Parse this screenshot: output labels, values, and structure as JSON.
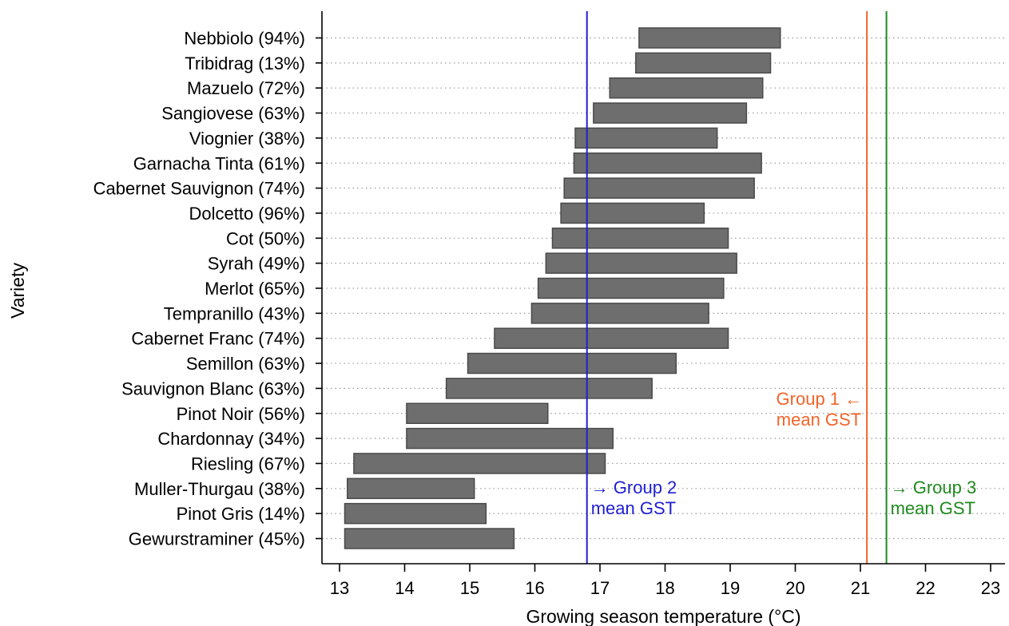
{
  "chart_data": {
    "type": "range_bar",
    "xlabel": "Growing season temperature (°C)",
    "ylabel": "Variety",
    "xlim": [
      12.7,
      23.1
    ],
    "xticks": [
      13,
      14,
      15,
      16,
      17,
      18,
      19,
      20,
      21,
      22,
      23
    ],
    "grid": "horizontal dotted",
    "bar_color": "#6e6e6e",
    "bars": [
      {
        "label": "Nebbiolo (94%)",
        "min": 17.6,
        "max": 19.77
      },
      {
        "label": "Tribidrag (13%)",
        "min": 17.55,
        "max": 19.62
      },
      {
        "label": "Mazuelo (72%)",
        "min": 17.15,
        "max": 19.5
      },
      {
        "label": "Sangiovese (63%)",
        "min": 16.9,
        "max": 19.25
      },
      {
        "label": "Viognier (38%)",
        "min": 16.62,
        "max": 18.8
      },
      {
        "label": "Garnacha Tinta (61%)",
        "min": 16.6,
        "max": 19.48
      },
      {
        "label": "Cabernet Sauvignon (74%)",
        "min": 16.45,
        "max": 19.37
      },
      {
        "label": "Dolcetto (96%)",
        "min": 16.4,
        "max": 18.6
      },
      {
        "label": "Cot (50%)",
        "min": 16.27,
        "max": 18.97
      },
      {
        "label": "Syrah (49%)",
        "min": 16.17,
        "max": 19.1
      },
      {
        "label": "Merlot (65%)",
        "min": 16.05,
        "max": 18.9
      },
      {
        "label": "Tempranillo (43%)",
        "min": 15.95,
        "max": 18.67
      },
      {
        "label": "Cabernet Franc (74%)",
        "min": 15.38,
        "max": 18.97
      },
      {
        "label": "Semillon (63%)",
        "min": 14.97,
        "max": 18.17
      },
      {
        "label": "Sauvignon Blanc (63%)",
        "min": 14.64,
        "max": 17.8
      },
      {
        "label": "Pinot Noir (56%)",
        "min": 14.03,
        "max": 16.2
      },
      {
        "label": "Chardonnay (34%)",
        "min": 14.03,
        "max": 17.2
      },
      {
        "label": "Riesling (67%)",
        "min": 13.22,
        "max": 17.08
      },
      {
        "label": "Muller-Thurgau (38%)",
        "min": 13.12,
        "max": 15.07
      },
      {
        "label": "Pinot Gris (14%)",
        "min": 13.08,
        "max": 15.25
      },
      {
        "label": "Gewurstraminer (45%)",
        "min": 13.08,
        "max": 15.68
      }
    ],
    "reference_lines": [
      {
        "value": 16.8,
        "color": "#1f1fd2",
        "label_line1": "→ Group 2",
        "label_line2": "mean GST",
        "label_side": "right"
      },
      {
        "value": 21.1,
        "color": "#f2642a",
        "label_line1": "Group 1 ←",
        "label_line2": "mean GST",
        "label_side": "left"
      },
      {
        "value": 21.4,
        "color": "#1f8a1f",
        "label_line1": "→ Group 3",
        "label_line2": "mean GST",
        "label_side": "right"
      }
    ]
  }
}
